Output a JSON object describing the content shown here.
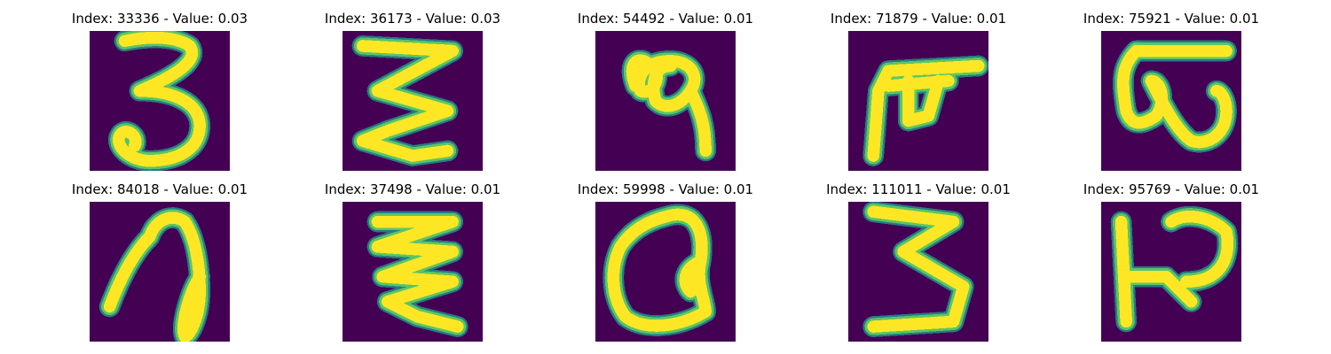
{
  "colors": {
    "background": "#440154",
    "glow_outer": "#21918c",
    "glow_mid": "#5ec962",
    "stroke_core": "#fde725"
  },
  "grid": [
    {
      "index": "33336",
      "value": "0.03",
      "title": "Index: 33336 - Value: 0.03",
      "glyph": "three-curl"
    },
    {
      "index": "36173",
      "value": "0.03",
      "title": "Index: 36173 - Value: 0.03",
      "glyph": "three-zig"
    },
    {
      "index": "54492",
      "value": "0.01",
      "title": "Index: 54492 - Value: 0.01",
      "glyph": "loop-tail"
    },
    {
      "index": "71879",
      "value": "0.01",
      "title": "Index: 71879 - Value: 0.01",
      "glyph": "pi-like"
    },
    {
      "index": "75921",
      "value": "0.01",
      "title": "Index: 75921 - Value: 0.01",
      "glyph": "omega-bar"
    },
    {
      "index": "84018",
      "value": "0.01",
      "title": "Index: 84018 - Value: 0.01",
      "glyph": "hook-loop"
    },
    {
      "index": "37498",
      "value": "0.01",
      "title": "Index: 37498 - Value: 0.01",
      "glyph": "triple-zig"
    },
    {
      "index": "59998",
      "value": "0.01",
      "title": "Index: 59998 - Value: 0.01",
      "glyph": "circle-knot"
    },
    {
      "index": "111011",
      "value": "0.01",
      "title": "Index: 111011 - Value: 0.01",
      "glyph": "three-angular"
    },
    {
      "index": "95769",
      "value": "0.01",
      "title": "Index: 95769 - Value: 0.01",
      "glyph": "p-bar"
    }
  ]
}
